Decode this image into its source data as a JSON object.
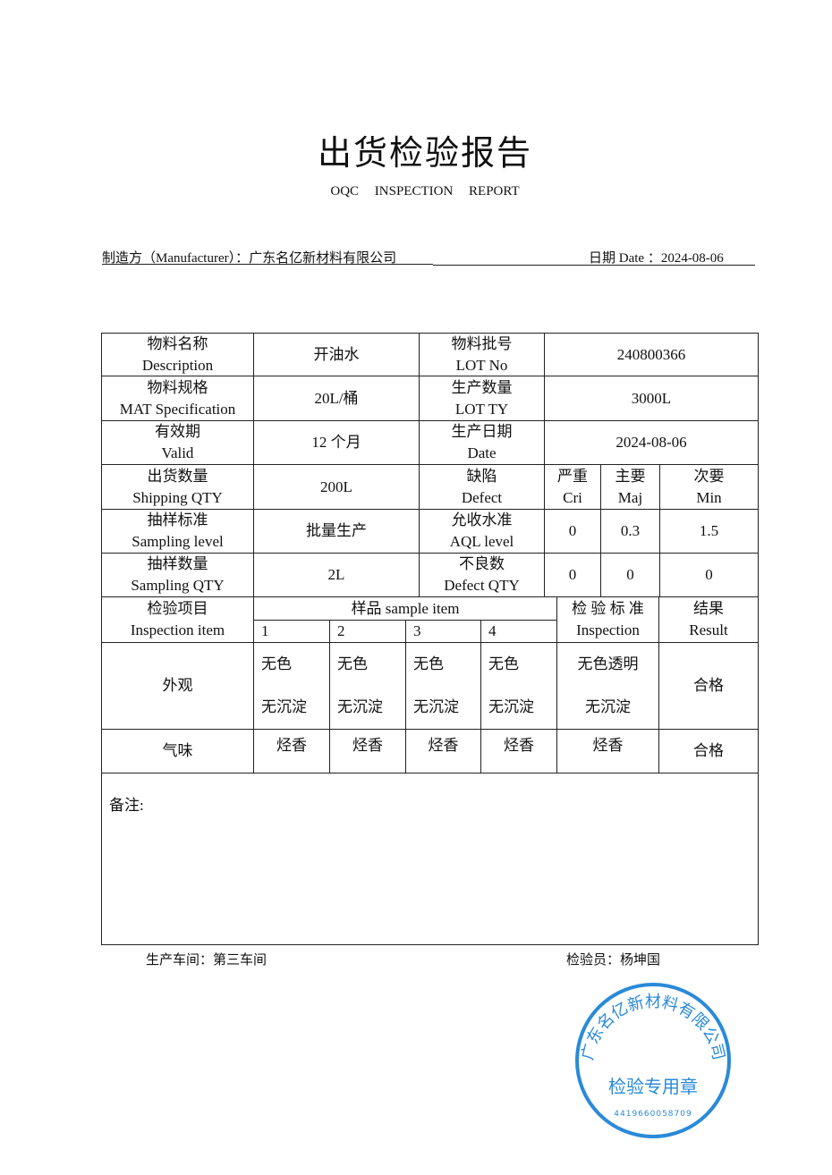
{
  "title": "出货检验报告",
  "subtitle": "OQC INSPECTION REPORT",
  "manufacturer_label": "制造方（Manufacturer）：广东名亿新材料有限公司",
  "date_label": "日期 Date ：2024-08-06",
  "table": {
    "r1": [
      "物料名称",
      "Description",
      "开油水",
      "物料批号",
      "LOT No",
      "240800366"
    ],
    "r2": [
      "物料规格",
      "MAT Specification",
      "20L/桶",
      "生产数量",
      "LOT TY",
      "3000L"
    ],
    "r3": [
      "有效期",
      "Valid",
      "12 个月",
      "生产日期",
      "Date",
      "2024-08-06"
    ],
    "r4": [
      "出货数量",
      "Shipping QTY",
      "200L",
      "缺陷",
      "Defect",
      "严重",
      "Cri",
      "主要",
      "Maj",
      "次要",
      "Min"
    ],
    "r5": [
      "抽样标准",
      "Sampling level",
      "批量生产",
      "允收水准",
      "AQL level",
      "0",
      "0.3",
      "1.5"
    ],
    "r6": [
      "抽样数量",
      "Sampling QTY",
      "2L",
      "不良数",
      "Defect QTY",
      "0",
      "0",
      "0"
    ],
    "h": [
      "检验项目",
      "Inspection item",
      "样品 sample item",
      "1",
      "2",
      "3",
      "4",
      "检 验 标 准",
      "Inspection",
      "结果",
      "Result"
    ],
    "appearance": {
      "item": "外观",
      "samples": [
        [
          "无色",
          "无沉淀"
        ],
        [
          "无色",
          "无沉淀"
        ],
        [
          "无色",
          "无沉淀"
        ],
        [
          "无色",
          "无沉淀"
        ]
      ],
      "standard": [
        "无色透明",
        "无沉淀"
      ],
      "result": "合格"
    },
    "odor": {
      "item": "气味",
      "samples": [
        "烃香",
        "烃香",
        "烃香",
        "烃香"
      ],
      "standard": "烃香",
      "result": "合格"
    },
    "remarks_label": "备注:"
  },
  "footer": {
    "workshop": "生产车间：第三车间",
    "inspector": "检验员：杨坤国"
  },
  "stamp": {
    "company": "广东名亿新材料有限公司",
    "purpose": "检验专用章",
    "number": "4419660058709",
    "color": "#2a8ad8"
  }
}
